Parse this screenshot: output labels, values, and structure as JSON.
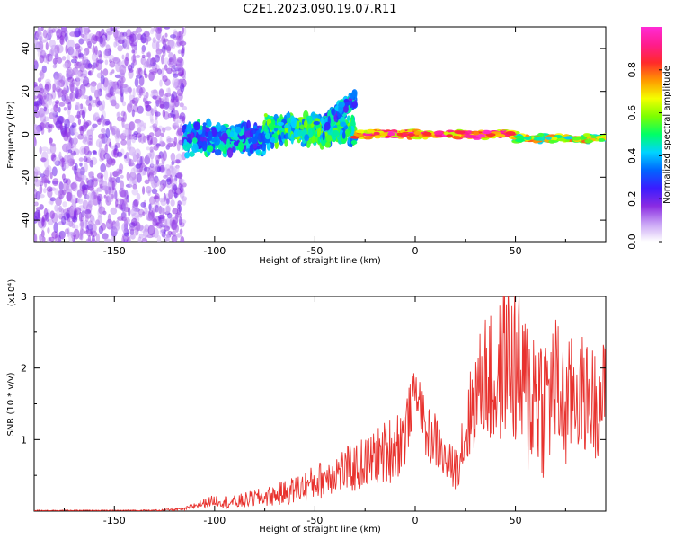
{
  "page_title": "C2E1.2023.090.19.07.R11",
  "colors": {
    "spec_low": "#8a2be2",
    "snr_line": "#e8322e",
    "frame": "#000000"
  },
  "chart_data": [
    {
      "type": "heatmap",
      "title": "C2E1.2023.090.19.07.R11",
      "xlabel": "Height of straight line (km)",
      "ylabel": "Frequency (Hz)",
      "xlim": [
        -190,
        95
      ],
      "ylim": [
        -50,
        50
      ],
      "xticks": [
        -150,
        -100,
        -50,
        0,
        50
      ],
      "yticks": [
        -40,
        -20,
        0,
        20,
        40
      ],
      "colorbar": {
        "label": "Normalized spectral amplitude",
        "range": [
          0,
          1
        ],
        "ticks": [
          "0.0",
          "0.2",
          "0.4",
          "0.6",
          "0.8"
        ],
        "tick_values": [
          0.0,
          0.2,
          0.4,
          0.6,
          0.8
        ],
        "colormap": [
          "#ffffff",
          "#c9a3f5",
          "#8a2be2",
          "#3a1cff",
          "#0066ff",
          "#00d4ff",
          "#00ff66",
          "#7cff00",
          "#f4ff00",
          "#ff9900",
          "#ff2a2a",
          "#ff1c8c",
          "#ff2bd6"
        ]
      },
      "regions": [
        {
          "x": [
            -190,
            -115
          ],
          "y_center": 0,
          "y_spread": 50,
          "amplitude": [
            0.05,
            0.2
          ],
          "pattern": "scattered"
        },
        {
          "x": [
            -115,
            -75
          ],
          "y_center": -2,
          "y_spread": 8,
          "amplitude": [
            0.2,
            0.5
          ],
          "pattern": "band"
        },
        {
          "x": [
            -75,
            -30
          ],
          "y_center": 2,
          "y_spread": 8,
          "amplitude": [
            0.3,
            0.6
          ],
          "pattern": "band"
        },
        {
          "x": [
            -45,
            -30
          ],
          "y_center": 12,
          "y_spread": 6,
          "amplitude": [
            0.2,
            0.5
          ],
          "pattern": "upper-branch"
        },
        {
          "x": [
            -30,
            50
          ],
          "y_center": 0,
          "y_spread": 2,
          "amplitude": [
            0.6,
            1.0
          ],
          "pattern": "narrow-line"
        },
        {
          "x": [
            50,
            95
          ],
          "y_center": -2,
          "y_spread": 2,
          "amplitude": [
            0.4,
            0.8
          ],
          "pattern": "narrow-line"
        }
      ]
    },
    {
      "type": "line",
      "xlabel": "Height of straight line (km)",
      "ylabel": "SNR (10 * v/v)",
      "y_multiplier": "(x10⁴)",
      "xlim": [
        -190,
        95
      ],
      "ylim": [
        0,
        3
      ],
      "xticks": [
        -150,
        -100,
        -50,
        0,
        50
      ],
      "yticks": [
        1,
        2,
        3
      ],
      "series": [
        {
          "x": [
            -190,
            -170,
            -150,
            -130,
            -115,
            -110,
            -100,
            -90,
            -80,
            -70,
            -60,
            -50,
            -40,
            -30,
            -20,
            -10,
            -5,
            0,
            2,
            5,
            10,
            15,
            20,
            25,
            30,
            35,
            40,
            45,
            50,
            55,
            60,
            65,
            70,
            75,
            80,
            85,
            90,
            95
          ],
          "y": [
            0.01,
            0.01,
            0.01,
            0.01,
            0.03,
            0.08,
            0.15,
            0.12,
            0.18,
            0.22,
            0.3,
            0.4,
            0.55,
            0.6,
            0.75,
            0.9,
            1.1,
            1.7,
            1.6,
            1.1,
            1.0,
            0.7,
            0.6,
            1.1,
            1.6,
            1.9,
            1.7,
            2.2,
            2.0,
            1.6,
            1.7,
            1.5,
            1.8,
            1.4,
            1.7,
            1.6,
            1.5,
            1.7
          ],
          "amplitude": [
            0.005,
            0.005,
            0.005,
            0.01,
            0.02,
            0.05,
            0.08,
            0.1,
            0.12,
            0.15,
            0.2,
            0.25,
            0.3,
            0.35,
            0.4,
            0.5,
            0.5,
            0.3,
            0.3,
            0.4,
            0.4,
            0.3,
            0.3,
            0.6,
            0.7,
            0.9,
            1.0,
            1.1,
            1.2,
            1.2,
            1.2,
            1.1,
            1.0,
            0.9,
            0.9,
            0.8,
            0.8,
            0.7
          ]
        }
      ]
    }
  ]
}
